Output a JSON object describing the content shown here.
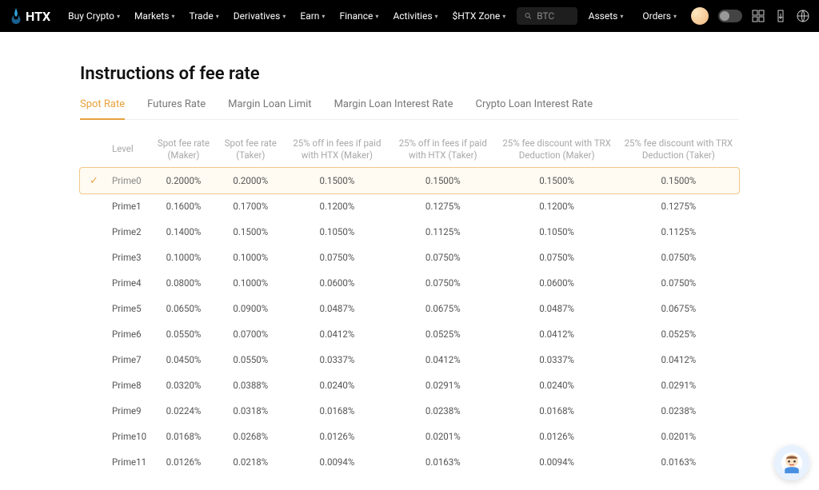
{
  "brand": "HTX",
  "nav": [
    "Buy Crypto",
    "Markets",
    "Trade",
    "Derivatives",
    "Earn",
    "Finance",
    "Activities",
    "$HTX Zone"
  ],
  "search_placeholder": "BTC",
  "nav_right": [
    "Assets",
    "Orders"
  ],
  "title": "Instructions of fee rate",
  "tabs": [
    "Spot Rate",
    "Futures Rate",
    "Margin Loan Limit",
    "Margin Loan Interest Rate",
    "Crypto Loan Interest Rate"
  ],
  "active_tab": 0,
  "columns": [
    "Level",
    "Spot fee rate (Maker)",
    "Spot fee rate (Taker)",
    "25% off in fees if paid with HTX (Maker)",
    "25% off in fees if paid with HTX (Taker)",
    "25% fee discount with TRX Deduction (Maker)",
    "25% fee discount with TRX Deduction (Taker)"
  ],
  "selected_row": 0,
  "rows": [
    [
      "Prime0",
      "0.2000%",
      "0.2000%",
      "0.1500%",
      "0.1500%",
      "0.1500%",
      "0.1500%"
    ],
    [
      "Prime1",
      "0.1600%",
      "0.1700%",
      "0.1200%",
      "0.1275%",
      "0.1200%",
      "0.1275%"
    ],
    [
      "Prime2",
      "0.1400%",
      "0.1500%",
      "0.1050%",
      "0.1125%",
      "0.1050%",
      "0.1125%"
    ],
    [
      "Prime3",
      "0.1000%",
      "0.1000%",
      "0.0750%",
      "0.0750%",
      "0.0750%",
      "0.0750%"
    ],
    [
      "Prime4",
      "0.0800%",
      "0.1000%",
      "0.0600%",
      "0.0750%",
      "0.0600%",
      "0.0750%"
    ],
    [
      "Prime5",
      "0.0650%",
      "0.0900%",
      "0.0487%",
      "0.0675%",
      "0.0487%",
      "0.0675%"
    ],
    [
      "Prime6",
      "0.0550%",
      "0.0700%",
      "0.0412%",
      "0.0525%",
      "0.0412%",
      "0.0525%"
    ],
    [
      "Prime7",
      "0.0450%",
      "0.0550%",
      "0.0337%",
      "0.0412%",
      "0.0337%",
      "0.0412%"
    ],
    [
      "Prime8",
      "0.0320%",
      "0.0388%",
      "0.0240%",
      "0.0291%",
      "0.0240%",
      "0.0291%"
    ],
    [
      "Prime9",
      "0.0224%",
      "0.0318%",
      "0.0168%",
      "0.0238%",
      "0.0168%",
      "0.0238%"
    ],
    [
      "Prime10",
      "0.0168%",
      "0.0268%",
      "0.0126%",
      "0.0201%",
      "0.0126%",
      "0.0201%"
    ],
    [
      "Prime11",
      "0.0126%",
      "0.0218%",
      "0.0094%",
      "0.0163%",
      "0.0094%",
      "0.0163%"
    ]
  ],
  "colors": {
    "accent": "#e6a23c",
    "topbar": "#000000",
    "text": "#555555",
    "muted": "#a8a8a8",
    "row_highlight": "#fffaf2",
    "row_border": "#f0c88a"
  }
}
